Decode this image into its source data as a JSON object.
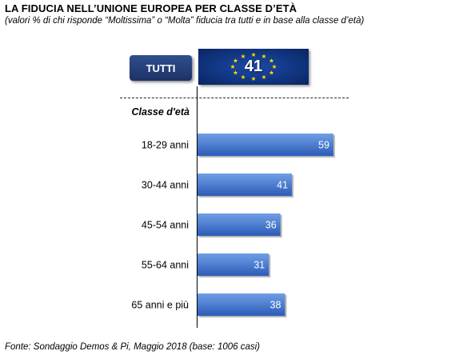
{
  "title": "LA FIDUCIA NELL’UNIONE EUROPEA PER CLASSE D’ETÀ",
  "subtitle": "(valori % di chi risponde “Moltissima” o “Molta” fiducia tra tutti e in base alla classe d’età)",
  "source": "Fonte: Sondaggio Demos & Pi, Maggio 2018 (base: 1006 casi)",
  "total": {
    "label": "TUTTI",
    "value": "41"
  },
  "group_label": "Classe d'età",
  "colors": {
    "bar_top": "#6f9fe6",
    "bar_bottom": "#2c5bb8",
    "button": "#1f3a74",
    "flag": "#113682",
    "star": "#ffd700"
  },
  "chart_data": {
    "type": "bar",
    "orientation": "horizontal",
    "title": "LA FIDUCIA NELL’UNIONE EUROPEA PER CLASSE D’ETÀ",
    "categories": [
      "18-29 anni",
      "30-44 anni",
      "45-54 anni",
      "55-64 anni",
      "65 anni e più"
    ],
    "values": [
      59,
      41,
      36,
      31,
      38
    ],
    "xlim": [
      0,
      100
    ],
    "grid": false,
    "legend": "none"
  }
}
